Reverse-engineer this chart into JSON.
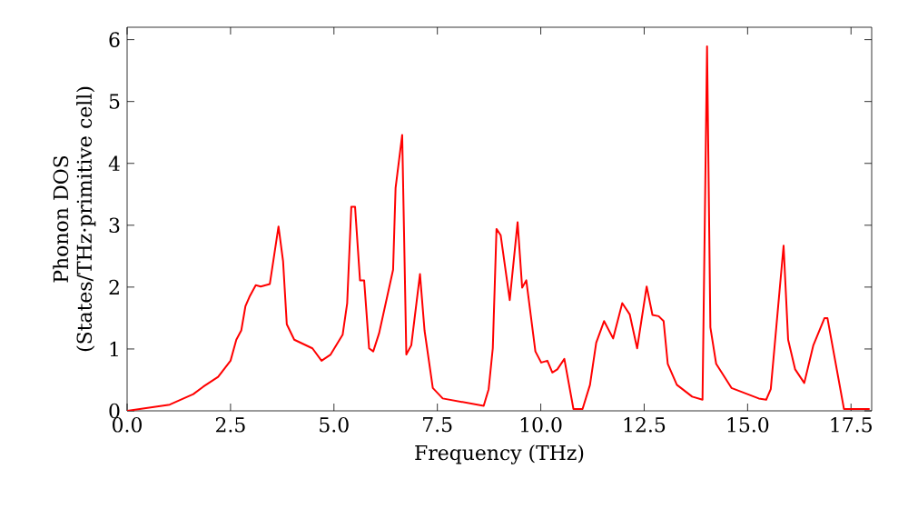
{
  "chart_data": {
    "type": "line",
    "xlabel": "Frequency (THz)",
    "ylabel": "Phonon DOS (States/THz·primitive cell)",
    "xlim": [
      0,
      18
    ],
    "ylim": [
      0,
      6.2
    ],
    "xticks": [
      {
        "value": 0,
        "label": "0.0"
      },
      2.5,
      {
        "value": 5,
        "label": "5.0"
      },
      7.5,
      {
        "value": 10,
        "label": "10.0"
      },
      12.5,
      {
        "value": 15,
        "label": "15.0"
      },
      17.5
    ],
    "yticks": [
      0,
      1,
      2,
      3,
      4,
      5,
      6
    ],
    "grid": false,
    "marker": "none",
    "line_style": "solid",
    "series": [
      {
        "color": "#ff0000",
        "x": [
          0,
          1.03,
          1.6,
          1.84,
          2.2,
          2.5,
          2.64,
          2.76,
          2.86,
          2.97,
          3.11,
          3.23,
          3.45,
          3.66,
          3.77,
          3.86,
          4.04,
          4.48,
          4.7,
          4.92,
          5.21,
          5.32,
          5.42,
          5.51,
          5.63,
          5.73,
          5.85,
          5.95,
          6.09,
          6.43,
          6.49,
          6.65,
          6.75,
          6.87,
          7.08,
          7.19,
          7.39,
          7.63,
          8.62,
          8.74,
          8.84,
          8.93,
          9.03,
          9.25,
          9.44,
          9.55,
          9.65,
          9.87,
          10.01,
          10.16,
          10.28,
          10.4,
          10.57,
          10.79,
          11.01,
          11.19,
          11.34,
          11.53,
          11.75,
          11.97,
          12.15,
          12.33,
          12.56,
          12.7,
          12.85,
          12.97,
          13.07,
          13.29,
          13.66,
          13.91,
          14.02,
          14.1,
          14.24,
          14.61,
          15.27,
          15.45,
          15.56,
          15.87,
          15.98,
          16.15,
          16.37,
          16.59,
          16.86,
          16.93,
          17.33,
          17.95
        ],
        "values": [
          0,
          0.1,
          0.27,
          0.39,
          0.55,
          0.81,
          1.15,
          1.3,
          1.69,
          1.86,
          2.03,
          2.01,
          2.05,
          2.98,
          2.42,
          1.4,
          1.15,
          1.01,
          0.81,
          0.91,
          1.23,
          1.74,
          3.3,
          3.3,
          2.11,
          2.11,
          1.01,
          0.96,
          1.25,
          2.28,
          3.6,
          4.46,
          0.91,
          1.06,
          2.21,
          1.3,
          0.37,
          0.2,
          0.08,
          0.35,
          1.01,
          2.94,
          2.84,
          1.79,
          3.05,
          1.99,
          2.11,
          0.96,
          0.78,
          0.81,
          0.62,
          0.67,
          0.84,
          0.03,
          0.03,
          0.42,
          1.1,
          1.45,
          1.17,
          1.74,
          1.56,
          1.01,
          2.01,
          1.55,
          1.53,
          1.45,
          0.76,
          0.42,
          0.23,
          0.18,
          5.89,
          1.35,
          0.76,
          0.37,
          0.2,
          0.18,
          0.35,
          2.67,
          1.15,
          0.67,
          0.45,
          1.06,
          1.5,
          1.5,
          0.03,
          0.03
        ]
      }
    ]
  }
}
